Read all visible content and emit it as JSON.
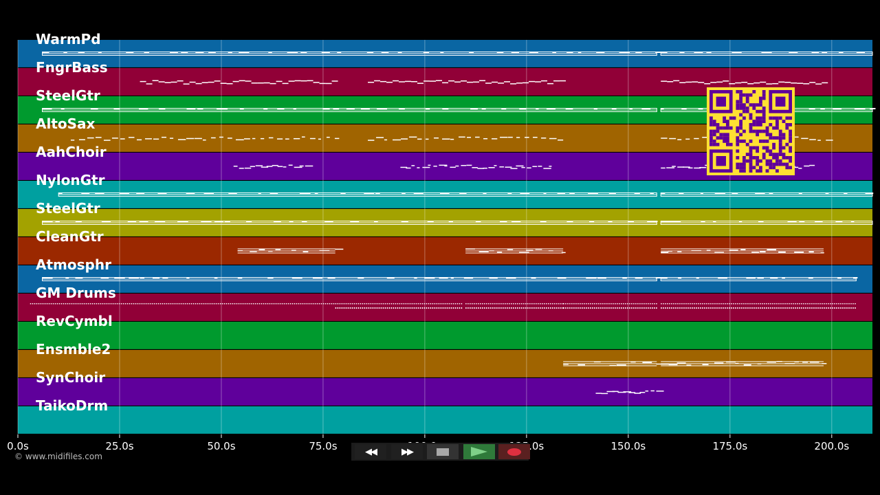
{
  "tracks": [
    {
      "name": "WarmPd",
      "color": "#0a66a3"
    },
    {
      "name": "FngrBass",
      "color": "#910037"
    },
    {
      "name": "SteelGtr",
      "color": "#009a2e"
    },
    {
      "name": "AltoSax",
      "color": "#a06400"
    },
    {
      "name": "AahChoir",
      "color": "#5f009b"
    },
    {
      "name": "NylonGtr",
      "color": "#00a0a0"
    },
    {
      "name": "SteelGtr",
      "color": "#a3a200"
    },
    {
      "name": "CleanGtr",
      "color": "#9b2800"
    },
    {
      "name": "Atmosphr",
      "color": "#0a66a3"
    },
    {
      "name": "GM Drums",
      "color": "#910037"
    },
    {
      "name": "RevCymbl",
      "color": "#009a2e"
    },
    {
      "name": "Ensmble2",
      "color": "#a06400"
    },
    {
      "name": "SynChoir",
      "color": "#5f009b"
    },
    {
      "name": "TaikoDrm",
      "color": "#00a0a0"
    }
  ],
  "time_axis": {
    "unit": "s",
    "min": 0,
    "max": 210,
    "ticks": [
      {
        "value": 0,
        "label": "0.0s"
      },
      {
        "value": 25,
        "label": "25.0s"
      },
      {
        "value": 50,
        "label": "50.0s"
      },
      {
        "value": 75,
        "label": "75.0s"
      },
      {
        "value": 100,
        "label": "100.0s"
      },
      {
        "value": 125,
        "label": "125.0s"
      },
      {
        "value": 150,
        "label": "150.0s"
      },
      {
        "value": 175,
        "label": "175.0s"
      },
      {
        "value": 200,
        "label": "200.0s"
      }
    ]
  },
  "note_segments": [
    [
      [
        6,
        157,
        "dense"
      ],
      [
        158,
        210,
        "dense"
      ]
    ],
    [
      [
        30,
        78,
        "sparse"
      ],
      [
        86,
        134,
        "sparse"
      ],
      [
        158,
        198,
        "sparse"
      ]
    ],
    [
      [
        6,
        157,
        "dense"
      ],
      [
        158,
        210,
        "dense"
      ]
    ],
    [
      [
        13,
        79,
        "dash"
      ],
      [
        86,
        134,
        "dash"
      ],
      [
        158,
        199,
        "dash"
      ]
    ],
    [
      [
        53,
        71,
        "short"
      ],
      [
        94,
        131,
        "short"
      ],
      [
        158,
        195,
        "short"
      ]
    ],
    [
      [
        10,
        157,
        "dense"
      ],
      [
        158,
        210,
        "dense"
      ]
    ],
    [
      [
        6,
        157,
        "dense"
      ],
      [
        158,
        210,
        "dense"
      ]
    ],
    [
      [
        54,
        78,
        "block"
      ],
      [
        110,
        134,
        "block"
      ],
      [
        158,
        198,
        "block"
      ]
    ],
    [
      [
        6,
        157,
        "dense"
      ],
      [
        158,
        206,
        "dense"
      ]
    ],
    [
      [
        3,
        78,
        "dots"
      ],
      [
        78,
        109,
        "dots"
      ],
      [
        110,
        134,
        "dots"
      ],
      [
        134,
        157,
        "dots"
      ],
      [
        158,
        206,
        "dots"
      ]
    ],
    [],
    [
      [
        134,
        157,
        "block"
      ],
      [
        158,
        198,
        "block"
      ]
    ],
    [
      [
        142,
        157,
        "short"
      ]
    ],
    []
  ],
  "qr_code": {
    "label": "qr-code",
    "bg": "#ffe033",
    "fg": "#5f009b"
  },
  "copyright": "© www.midifiles.com",
  "transport": {
    "rewind": "◀◀",
    "fast_forward": "▶▶",
    "stop": "",
    "play": "",
    "record": ""
  },
  "colors": {
    "background": "#000000",
    "note": "#ffffff",
    "grid": "#ffffff"
  }
}
